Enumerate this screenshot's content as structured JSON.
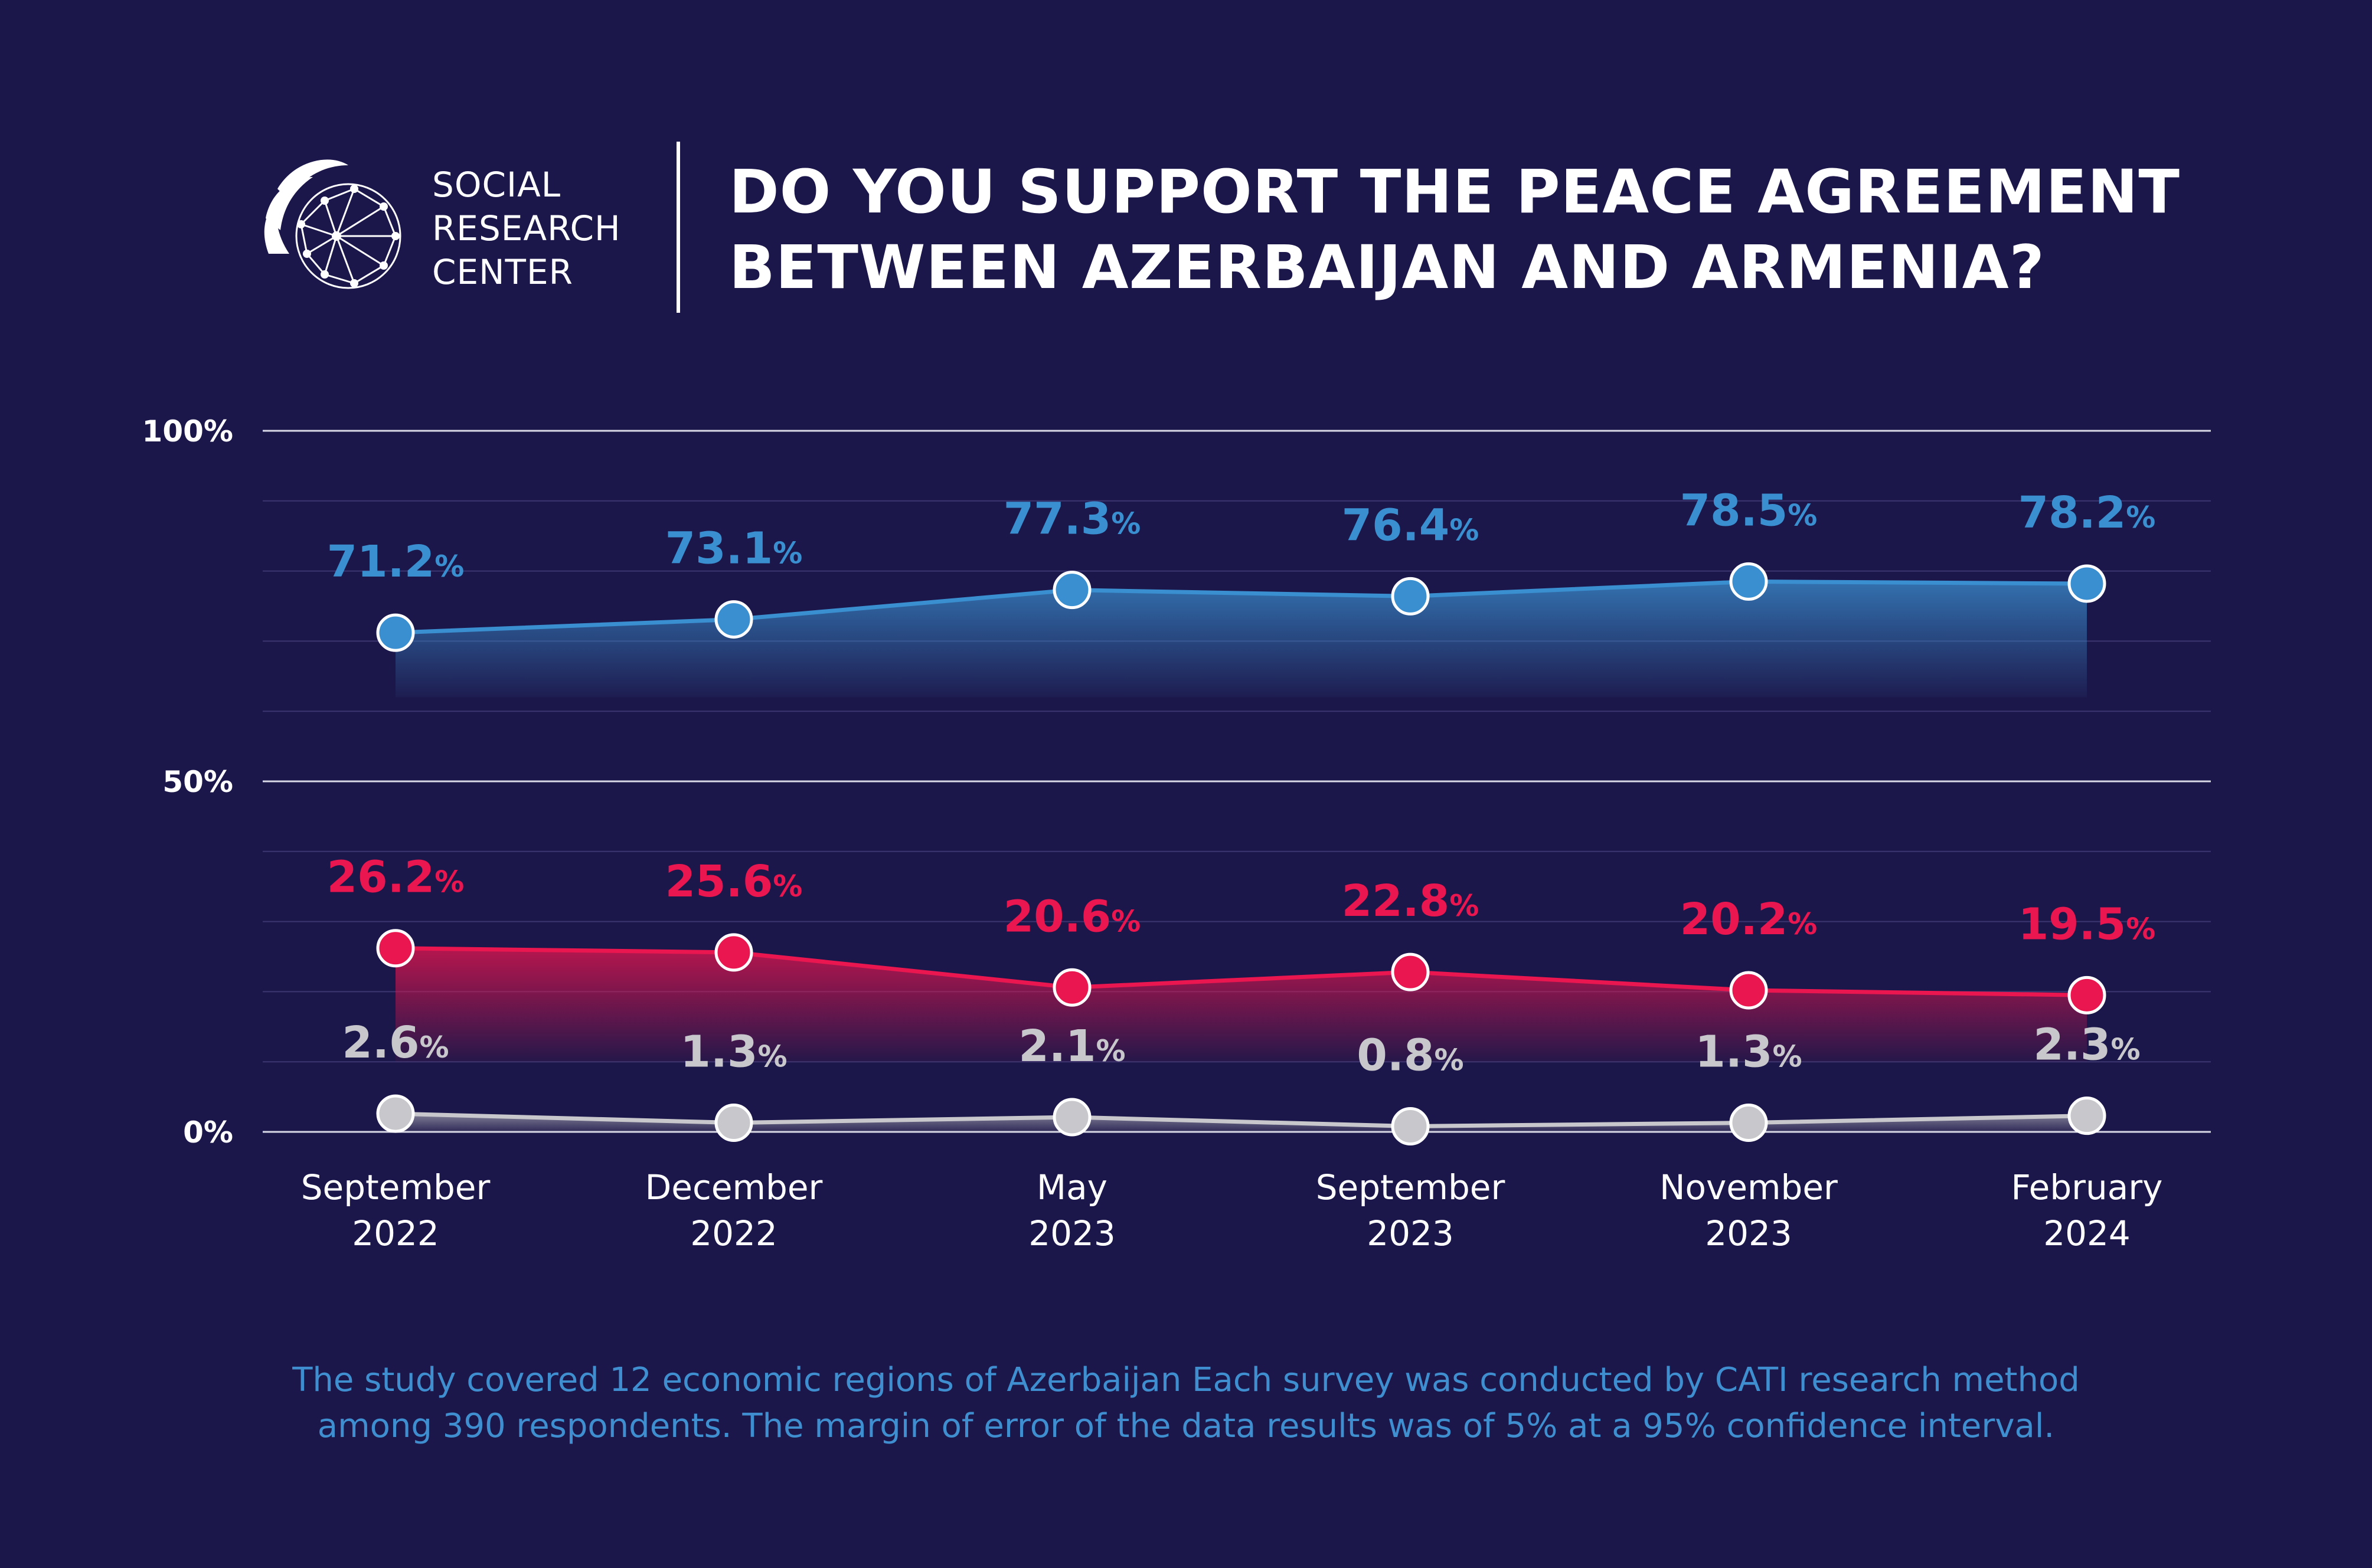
{
  "logo": {
    "lines": [
      "SOCIAL",
      "RESEARCH",
      "CENTER"
    ]
  },
  "title_lines": [
    "DO YOU SUPPORT THE PEACE AGREEMENT",
    "BETWEEN AZERBAIJAN AND ARMENIA?"
  ],
  "footnote_lines": [
    "The study covered 12 economic regions of Azerbaijan Each survey was conducted by CATI research method",
    "among 390 respondents. The margin of error of the data results was of 5% at a 95% confidence interval."
  ],
  "colors": {
    "background": "#1c174a",
    "support": "#3a8fd0",
    "oppose": "#e9164f",
    "undecided": "#c8c8cc",
    "footnote": "#3f8fd0"
  },
  "chart_data": {
    "type": "line",
    "title": "DO YOU SUPPORT THE PEACE AGREEMENT BETWEEN AZERBAIJAN AND ARMENIA?",
    "xlabel": "",
    "ylabel": "",
    "ylim": [
      0,
      100
    ],
    "y_ticks": [
      "0%",
      "50%",
      "100%"
    ],
    "grid": true,
    "legend": "none",
    "categories": [
      [
        "September",
        "2022"
      ],
      [
        "December",
        "2022"
      ],
      [
        "May",
        "2023"
      ],
      [
        "September",
        "2023"
      ],
      [
        "November",
        "2023"
      ],
      [
        "February",
        "2024"
      ]
    ],
    "series": [
      {
        "key": "support",
        "values": [
          71.2,
          73.1,
          77.3,
          76.4,
          78.5,
          78.2
        ],
        "labels": [
          "71.2",
          "73.1",
          "77.3",
          "76.4",
          "78.5",
          "78.2"
        ]
      },
      {
        "key": "oppose",
        "values": [
          26.2,
          25.6,
          20.6,
          22.8,
          20.2,
          19.5
        ],
        "labels": [
          "26.2",
          "25.6",
          "20.6",
          "22.8",
          "20.2",
          "19.5"
        ]
      },
      {
        "key": "undecided",
        "values": [
          2.6,
          1.3,
          2.1,
          0.8,
          1.3,
          2.3
        ],
        "labels": [
          "2.6",
          "1.3",
          "2.1",
          "0.8",
          "1.3",
          "2.3"
        ]
      }
    ],
    "percent_suffix": "%"
  }
}
